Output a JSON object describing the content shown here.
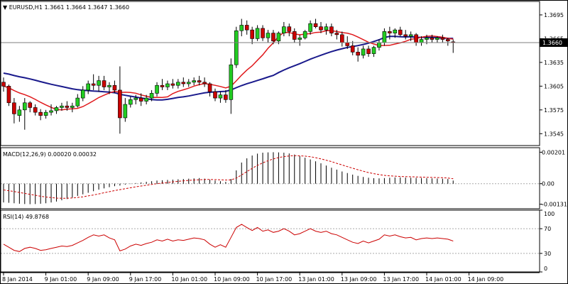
{
  "chart_data": [
    {
      "type": "candlestick",
      "symbol": "EURUSD,H1",
      "ohlc_header": [
        "1.3661",
        "1.3664",
        "1.3647",
        "1.3660"
      ],
      "price_labels": [
        "1.3695",
        "1.3665",
        "1.3635",
        "1.3605",
        "1.3575",
        "1.3545"
      ],
      "price_ticks": [
        1.3695,
        1.3665,
        1.3635,
        1.3605,
        1.3575,
        1.3545
      ],
      "current_price": "1.3660",
      "current_price_value": 1.366,
      "ylim": [
        1.353,
        1.3712
      ],
      "x_labels": [
        "8 Jan 2014",
        "9 Jan 01:00",
        "9 Jan 09:00",
        "9 Jan 17:00",
        "10 Jan 01:00",
        "10 Jan 09:00",
        "10 Jan 17:00",
        "13 Jan 01:00",
        "13 Jan 09:00",
        "13 Jan 17:00",
        "14 Jan 01:00",
        "14 Jan 09:00"
      ],
      "x_label_bars": [
        0,
        8,
        16,
        24,
        32,
        40,
        48,
        56,
        64,
        72,
        80,
        88
      ],
      "candles": [
        [
          1.361,
          1.3616,
          1.3598,
          1.3605
        ],
        [
          1.3605,
          1.3607,
          1.358,
          1.3584
        ],
        [
          1.3584,
          1.359,
          1.3558,
          1.357
        ],
        [
          1.3568,
          1.358,
          1.356,
          1.3575
        ],
        [
          1.3575,
          1.359,
          1.355,
          1.3584
        ],
        [
          1.3584,
          1.3586,
          1.3572,
          1.3578
        ],
        [
          1.3578,
          1.3582,
          1.3568,
          1.3572
        ],
        [
          1.3572,
          1.3576,
          1.3562,
          1.3568
        ],
        [
          1.3568,
          1.3575,
          1.3564,
          1.3572
        ],
        [
          1.3572,
          1.3582,
          1.3568,
          1.3574
        ],
        [
          1.3574,
          1.358,
          1.357,
          1.3578
        ],
        [
          1.3578,
          1.3584,
          1.3574,
          1.358
        ],
        [
          1.358,
          1.3586,
          1.3574,
          1.3578
        ],
        [
          1.3578,
          1.3584,
          1.3572,
          1.358
        ],
        [
          1.358,
          1.3595,
          1.3578,
          1.359
        ],
        [
          1.359,
          1.3605,
          1.3586,
          1.36
        ],
        [
          1.36,
          1.3612,
          1.3595,
          1.3608
        ],
        [
          1.3608,
          1.362,
          1.36,
          1.3606
        ],
        [
          1.3606,
          1.3618,
          1.3598,
          1.3612
        ],
        [
          1.3612,
          1.3618,
          1.36,
          1.3604
        ],
        [
          1.3604,
          1.361,
          1.3595,
          1.3606
        ],
        [
          1.3606,
          1.3612,
          1.3596,
          1.36
        ],
        [
          1.36,
          1.363,
          1.3545,
          1.3565
        ],
        [
          1.3565,
          1.359,
          1.356,
          1.3582
        ],
        [
          1.3582,
          1.3592,
          1.3578,
          1.3588
        ],
        [
          1.3588,
          1.3594,
          1.3582,
          1.359
        ],
        [
          1.359,
          1.3596,
          1.358,
          1.3586
        ],
        [
          1.3586,
          1.3594,
          1.3582,
          1.359
        ],
        [
          1.359,
          1.36,
          1.3586,
          1.3596
        ],
        [
          1.3596,
          1.361,
          1.3592,
          1.3606
        ],
        [
          1.3606,
          1.3614,
          1.36,
          1.3604
        ],
        [
          1.3604,
          1.3612,
          1.36,
          1.3608
        ],
        [
          1.3608,
          1.3614,
          1.3602,
          1.3606
        ],
        [
          1.3606,
          1.3614,
          1.3602,
          1.361
        ],
        [
          1.361,
          1.3616,
          1.3604,
          1.3608
        ],
        [
          1.3608,
          1.3614,
          1.3604,
          1.361
        ],
        [
          1.361,
          1.3616,
          1.3606,
          1.3612
        ],
        [
          1.3612,
          1.3618,
          1.3606,
          1.361
        ],
        [
          1.361,
          1.3616,
          1.3604,
          1.3608
        ],
        [
          1.3608,
          1.361,
          1.3592,
          1.3598
        ],
        [
          1.3598,
          1.3602,
          1.3586,
          1.359
        ],
        [
          1.359,
          1.3598,
          1.3584,
          1.3594
        ],
        [
          1.3594,
          1.36,
          1.3584,
          1.3588
        ],
        [
          1.3588,
          1.364,
          1.357,
          1.3632
        ],
        [
          1.3632,
          1.368,
          1.3628,
          1.3675
        ],
        [
          1.3675,
          1.369,
          1.3668,
          1.3682
        ],
        [
          1.3682,
          1.3688,
          1.367,
          1.3676
        ],
        [
          1.3676,
          1.368,
          1.3658,
          1.3665
        ],
        [
          1.3665,
          1.3682,
          1.3662,
          1.3678
        ],
        [
          1.3678,
          1.3682,
          1.3662,
          1.3666
        ],
        [
          1.3666,
          1.3676,
          1.366,
          1.3672
        ],
        [
          1.3672,
          1.3676,
          1.3658,
          1.3662
        ],
        [
          1.3662,
          1.3674,
          1.3658,
          1.3672
        ],
        [
          1.3672,
          1.3686,
          1.3668,
          1.368
        ],
        [
          1.368,
          1.3684,
          1.3668,
          1.3674
        ],
        [
          1.3674,
          1.3678,
          1.366,
          1.3664
        ],
        [
          1.3664,
          1.367,
          1.3656,
          1.3666
        ],
        [
          1.3666,
          1.3676,
          1.3664,
          1.3674
        ],
        [
          1.3674,
          1.3688,
          1.367,
          1.3684
        ],
        [
          1.3684,
          1.369,
          1.3678,
          1.368
        ],
        [
          1.368,
          1.3686,
          1.3672,
          1.3676
        ],
        [
          1.3676,
          1.3684,
          1.367,
          1.368
        ],
        [
          1.368,
          1.3684,
          1.3668,
          1.3672
        ],
        [
          1.3672,
          1.3676,
          1.3664,
          1.367
        ],
        [
          1.367,
          1.3674,
          1.3655,
          1.366
        ],
        [
          1.366,
          1.3668,
          1.3652,
          1.3656
        ],
        [
          1.3656,
          1.3662,
          1.3644,
          1.3648
        ],
        [
          1.3648,
          1.3654,
          1.3636,
          1.3644
        ],
        [
          1.3644,
          1.3656,
          1.364,
          1.3652
        ],
        [
          1.3652,
          1.3656,
          1.3642,
          1.3646
        ],
        [
          1.3646,
          1.3656,
          1.3642,
          1.3654
        ],
        [
          1.3654,
          1.3664,
          1.365,
          1.366
        ],
        [
          1.366,
          1.3678,
          1.3656,
          1.3674
        ],
        [
          1.3674,
          1.368,
          1.3664,
          1.3672
        ],
        [
          1.3672,
          1.3678,
          1.3666,
          1.3676
        ],
        [
          1.3676,
          1.368,
          1.3668,
          1.367
        ],
        [
          1.367,
          1.3676,
          1.3664,
          1.3668
        ],
        [
          1.3668,
          1.3674,
          1.3662,
          1.367
        ],
        [
          1.367,
          1.3672,
          1.3656,
          1.366
        ],
        [
          1.366,
          1.3668,
          1.3656,
          1.3664
        ],
        [
          1.3664,
          1.367,
          1.3658,
          1.3666
        ],
        [
          1.3666,
          1.367,
          1.366,
          1.3664
        ],
        [
          1.3664,
          1.3668,
          1.366,
          1.3666
        ],
        [
          1.3666,
          1.367,
          1.366,
          1.3664
        ],
        [
          1.3664,
          1.3666,
          1.3656,
          1.3662
        ],
        [
          1.3661,
          1.3664,
          1.3647,
          1.366
        ]
      ],
      "ma_fast_color": "#e0191c",
      "ma_slow_color": "#1a1a8c",
      "bull_color": "#22cc22",
      "bear_color": "#cc0000",
      "grid": false
    },
    {
      "type": "histogram",
      "indicator": "MACD",
      "header": [
        "MACD(12,26,9)",
        "0.00020",
        "0.00032"
      ],
      "axis_labels": [
        "0.00201",
        "0.00",
        "-0.00131"
      ],
      "axis_values": [
        0.00201,
        0.0,
        -0.00131
      ],
      "ylim": [
        -0.0016,
        0.0023
      ],
      "hist": [
        -0.0012,
        -0.00122,
        -0.00125,
        -0.00128,
        -0.0013,
        -0.00131,
        -0.0013,
        -0.00128,
        -0.00125,
        -0.0012,
        -0.00114,
        -0.00106,
        -0.00098,
        -0.00089,
        -0.00078,
        -0.00068,
        -0.00058,
        -0.00048,
        -0.00038,
        -0.0003,
        -0.00022,
        -0.00016,
        -0.00012,
        -6e-05,
        -2e-05,
        4e-05,
        8e-05,
        0.00012,
        0.00016,
        0.0002,
        0.00022,
        0.00024,
        0.00026,
        0.00028,
        0.0003,
        0.00032,
        0.00034,
        0.00036,
        0.00032,
        0.00026,
        0.0002,
        0.00016,
        0.00012,
        0.0003,
        0.00085,
        0.00135,
        0.00162,
        0.0018,
        0.00192,
        0.00198,
        0.002,
        0.00201,
        0.002,
        0.00198,
        0.00193,
        0.00186,
        0.00176,
        0.00166,
        0.00155,
        0.00143,
        0.0013,
        0.00116,
        0.00102,
        0.0009,
        0.00078,
        0.00068,
        0.00058,
        0.0005,
        0.00043,
        0.00038,
        0.00035,
        0.00034,
        0.00036,
        0.00038,
        0.0004,
        0.0004,
        0.00039,
        0.00038,
        0.00037,
        0.00036,
        0.00035,
        0.00034,
        0.00033,
        0.00032,
        0.0003,
        0.0002
      ],
      "signal": [
        -0.0004,
        -0.00045,
        -0.0005,
        -0.00056,
        -0.00062,
        -0.00068,
        -0.00074,
        -0.0008,
        -0.00085,
        -0.00089,
        -0.00092,
        -0.00093,
        -0.00093,
        -0.00091,
        -0.00088,
        -0.00084,
        -0.00078,
        -0.00072,
        -0.00065,
        -0.00058,
        -0.00051,
        -0.00044,
        -0.00038,
        -0.00032,
        -0.00026,
        -0.0002,
        -0.00015,
        -0.0001,
        -5e-05,
        0.0,
        4e-05,
        8e-05,
        0.00012,
        0.00015,
        0.00018,
        0.00021,
        0.00023,
        0.00025,
        0.00027,
        0.00027,
        0.00026,
        0.00025,
        0.00023,
        0.00024,
        0.00036,
        0.00056,
        0.00077,
        0.00098,
        0.00117,
        0.00133,
        0.00147,
        0.00158,
        0.00167,
        0.00173,
        0.00177,
        0.00179,
        0.00178,
        0.00176,
        0.00172,
        0.00166,
        0.00159,
        0.0015,
        0.00141,
        0.0013,
        0.0012,
        0.00109,
        0.00099,
        0.00089,
        0.0008,
        0.00071,
        0.00064,
        0.00058,
        0.00053,
        0.0005,
        0.00048,
        0.00046,
        0.00045,
        0.00044,
        0.00043,
        0.00042,
        0.00041,
        0.0004,
        0.00039,
        0.00038,
        0.00036,
        0.00032
      ],
      "hist_color": "#000000",
      "signal_color": "#cc0000"
    },
    {
      "type": "line",
      "indicator": "RSI",
      "header": [
        "RSI(14)",
        "49.8768"
      ],
      "axis_labels": [
        "100",
        "70",
        "30",
        "0"
      ],
      "axis_values": [
        100,
        70,
        30,
        0
      ],
      "levels": [
        70,
        30
      ],
      "ylim": [
        0,
        100
      ],
      "values": [
        45,
        40,
        35,
        33,
        38,
        40,
        38,
        35,
        36,
        38,
        40,
        42,
        41,
        43,
        47,
        51,
        56,
        60,
        58,
        60,
        55,
        52,
        34,
        37,
        42,
        45,
        43,
        46,
        48,
        52,
        50,
        53,
        50,
        52,
        51,
        53,
        55,
        54,
        52,
        45,
        40,
        44,
        40,
        56,
        72,
        77,
        72,
        67,
        72,
        66,
        68,
        64,
        66,
        70,
        66,
        60,
        62,
        66,
        70,
        66,
        64,
        66,
        62,
        60,
        56,
        52,
        48,
        46,
        50,
        47,
        50,
        53,
        60,
        58,
        60,
        57,
        55,
        56,
        52,
        54,
        55,
        54,
        55,
        54,
        53,
        50
      ],
      "line_color": "#cc0000"
    }
  ]
}
